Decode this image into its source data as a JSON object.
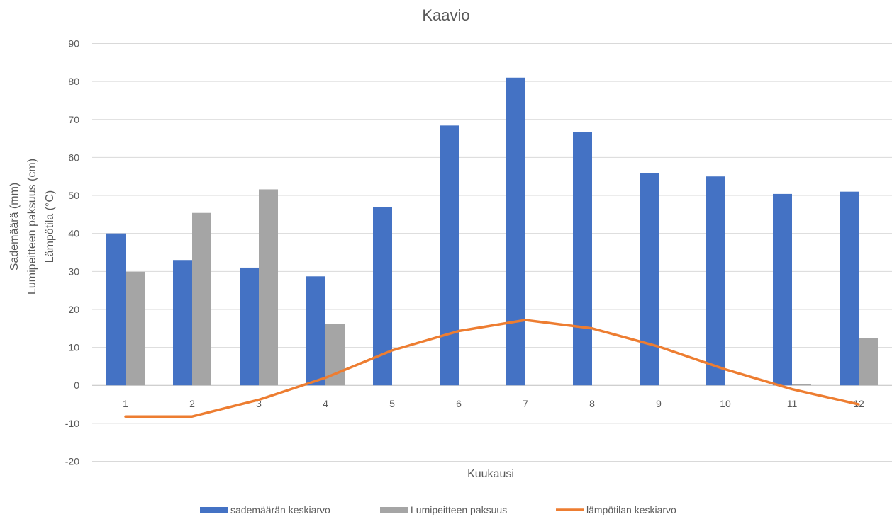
{
  "chart_data": {
    "type": "bar",
    "title": "Kaavio",
    "xlabel": "Kuukausi",
    "ylabel_lines": [
      "Sademäärä (mm)",
      "Lumipeitteen paksuus (cm)",
      "Lämpötila (°C)"
    ],
    "ylim": [
      -20,
      90
    ],
    "yticks": [
      -20,
      -10,
      0,
      10,
      20,
      30,
      40,
      50,
      60,
      70,
      80,
      90
    ],
    "grid": true,
    "legend_position": "bottom",
    "categories": [
      "1",
      "2",
      "3",
      "4",
      "5",
      "6",
      "7",
      "8",
      "9",
      "10",
      "11",
      "12"
    ],
    "series": [
      {
        "name": "sademäärän keskiarvo",
        "type": "bar",
        "color": "#4472c4",
        "values": [
          40,
          33,
          31,
          28.7,
          47,
          68.4,
          81,
          66.6,
          55.8,
          55,
          50.4,
          51
        ]
      },
      {
        "name": "Lumipeitteen paksuus",
        "type": "bar",
        "color": "#a5a5a5",
        "values": [
          29.9,
          45.4,
          51.6,
          16.1,
          0,
          0,
          0,
          0,
          0,
          0,
          0.4,
          12.4
        ]
      },
      {
        "name": "lämpötilan keskiarvo",
        "type": "line",
        "color": "#ed7d31",
        "values": [
          -8.2,
          -8.2,
          -3.8,
          2,
          9.2,
          14.3,
          17.2,
          15,
          10.2,
          4.2,
          -1,
          -5
        ]
      }
    ]
  }
}
